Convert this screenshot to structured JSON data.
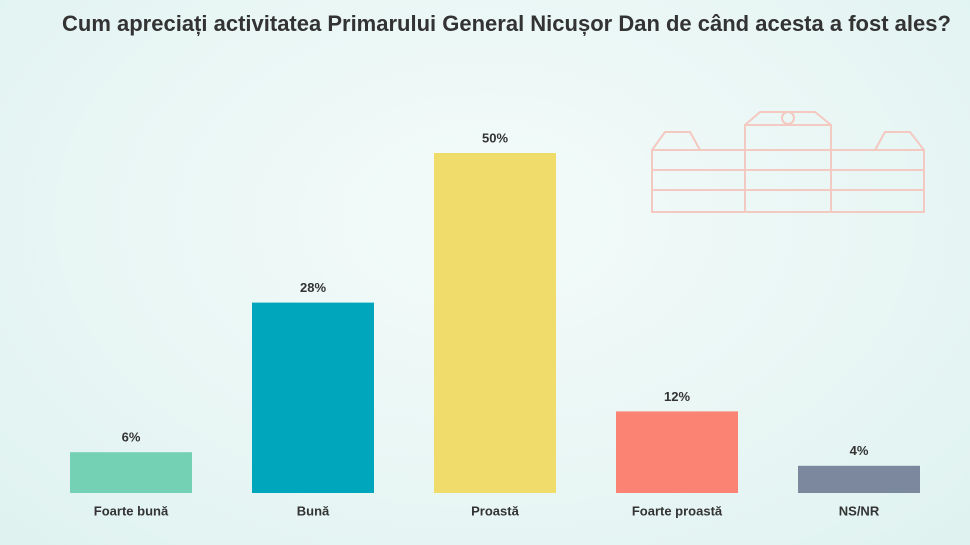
{
  "chart_data": {
    "type": "bar",
    "title": "Cum apreciați activitatea Primarului General Nicușor Dan de când acesta a fost ales?",
    "categories": [
      "Foarte bună",
      "Bună",
      "Proastă",
      "Foarte proastă",
      "NS/NR"
    ],
    "values": [
      6,
      28,
      50,
      12,
      4
    ],
    "value_labels": [
      "6%",
      "28%",
      "50%",
      "12%",
      "4%"
    ],
    "colors": [
      "#74d1b4",
      "#00a6bb",
      "#f0dc6a",
      "#fb8374",
      "#7b889d"
    ]
  }
}
